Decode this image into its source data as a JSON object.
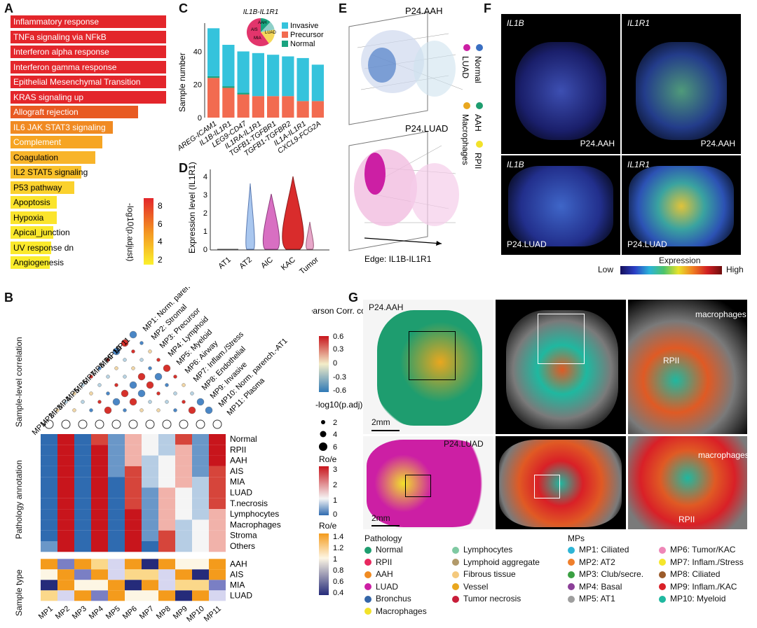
{
  "panels": {
    "a": "A",
    "b": "B",
    "c": "C",
    "d": "D",
    "e": "E",
    "f": "F",
    "g": "G"
  },
  "panelA": {
    "terms": [
      {
        "label": "Inflammatory response",
        "value": 8.8,
        "color": "#e3262b"
      },
      {
        "label": "TNFa signaling via NFkB",
        "value": 8.8,
        "color": "#e3262b"
      },
      {
        "label": "Interferon alpha response",
        "value": 8.8,
        "color": "#e3262b"
      },
      {
        "label": "Interferon gamma response",
        "value": 8.8,
        "color": "#e3262b"
      },
      {
        "label": "Epithelial Mesenchymal Transition",
        "value": 8.8,
        "color": "#e3262b"
      },
      {
        "label": "KRAS signaling up",
        "value": 8.8,
        "color": "#e3262b"
      },
      {
        "label": "Allograft rejection",
        "value": 7.2,
        "color": "#e85a22"
      },
      {
        "label": "IL6 JAK STAT3 signaling",
        "value": 5.8,
        "color": "#f08a22"
      },
      {
        "label": "Complement",
        "value": 5.2,
        "color": "#f6a523"
      },
      {
        "label": "Coagulation",
        "value": 4.8,
        "color": "#f8b42a"
      },
      {
        "label": "IL2 STAT5 signaling",
        "value": 4.0,
        "color": "#f9c12b"
      },
      {
        "label": "P53 pathway",
        "value": 3.6,
        "color": "#fbd12d"
      },
      {
        "label": "Apoptosis",
        "value": 2.6,
        "color": "#fbe42c"
      },
      {
        "label": "Hypoxia",
        "value": 2.6,
        "color": "#fbe42c"
      },
      {
        "label": "Apical_junction",
        "value": 2.4,
        "color": "#fbe92c"
      },
      {
        "label": "UV response dn",
        "value": 2.3,
        "color": "#fbe92c"
      },
      {
        "label": "Angiogenesis",
        "value": 2.2,
        "color": "#fbed2c"
      }
    ],
    "legend_title": "-log10(p.adjust)",
    "legend_ticks": [
      "8",
      "6",
      "4",
      "2"
    ]
  },
  "chart_data": {
    "type": "bar",
    "title": "IL1B-IL1R1",
    "ylabel": "Sample number",
    "ylim": [
      0,
      55
    ],
    "yticks": [
      "0",
      "20",
      "40"
    ],
    "categories": [
      "AREG-ICAM1",
      "IL1B-IL1R1",
      "LEG9-CD47",
      "IL1RA-IL1R1",
      "TGFB1-TGFBR1",
      "TGFB1-TGFBR2",
      "IL1A-IL1R1",
      "CXCL9-FCG2A"
    ],
    "series": [
      {
        "name": "Precursor",
        "color": "#f26b50",
        "values": [
          24,
          18,
          14,
          13,
          13,
          13,
          10,
          10
        ]
      },
      {
        "name": "Normal",
        "color": "#1aa37f",
        "values": [
          1,
          1,
          1,
          0,
          0,
          0,
          0,
          0
        ]
      },
      {
        "name": "Invasive",
        "color": "#35c3dc",
        "values": [
          29,
          25,
          25,
          26,
          25,
          24,
          26,
          22
        ]
      }
    ],
    "legend": [
      "Invasive",
      "Precursor",
      "Normal"
    ],
    "pie_labels": [
      "AAH",
      "AIS",
      "MIA",
      "LUAD"
    ]
  },
  "panelD": {
    "ylabel": "Expression level (IL1R1)",
    "yticks": [
      "0",
      "1",
      "2",
      "3",
      "4"
    ],
    "groups": [
      "AT1",
      "AT2",
      "AIC",
      "KAC",
      "Tumor"
    ]
  },
  "panelE": {
    "top": "P24.AAH",
    "bottom": "P24.LUAD",
    "edge": "Edge: IL1B-IL1R1",
    "legend": [
      "Normal",
      "AAH",
      "RPII",
      "LUAD",
      "Macrophages"
    ]
  },
  "panelF": {
    "labels": [
      "IL1B",
      "IL1R1",
      "IL1B",
      "IL1R1"
    ],
    "samples": [
      "P24.AAH",
      "P24.AAH",
      "P24.LUAD",
      "P24.LUAD"
    ],
    "scale_title": "Expression",
    "low": "Low",
    "high": "High"
  },
  "panelB": {
    "mps": [
      "MP1",
      "MP2",
      "MP3",
      "MP4",
      "MP5",
      "MP6",
      "MP7",
      "MP8",
      "MP9",
      "MP10",
      "MP11"
    ],
    "mp_names": [
      "MP1: Norm. parench.",
      "MP2: Stromal",
      "MP3: Precursor",
      "MP4: Lymphoid",
      "MP5: Myeloid",
      "MP6: Airway",
      "MP7: Inflam./Stress",
      "MP8: Endothelial",
      "MP9: Invasive",
      "MP10: Norm. parench.-AT1",
      "MP11: Plasma"
    ],
    "section1": "Sample-level correlation",
    "section2": "Pathology annotation",
    "section3": "Sample type",
    "pathology_rows": [
      "Normal",
      "RPII",
      "AAH",
      "AIS",
      "MIA",
      "LUAD",
      "T.necrosis",
      "Lymphocytes",
      "Macrophages",
      "Stroma",
      "Others"
    ],
    "sample_rows": [
      "AAH",
      "AIS",
      "MIA",
      "LUAD"
    ],
    "corr_title": "Pearson Corr. coeff.",
    "corr_ticks": [
      "0.6",
      "0.3",
      "0",
      "-0.3",
      "-0.6"
    ],
    "padj_title": "-log10(p.adj)",
    "padj_ticks": [
      "2",
      "4",
      "6"
    ],
    "roe_title": "Ro/e",
    "roe_ticks": [
      "3",
      "2",
      "1",
      "0"
    ],
    "roe2_ticks": [
      "1.4",
      "1.2",
      "1",
      "0.8",
      "0.6",
      "0.4"
    ]
  },
  "panelG": {
    "aah": "P24.AAH",
    "luad": "P24.LUAD",
    "scale": "2mm",
    "macro": "macrophages",
    "rpii": "RPII",
    "path_title": "Pathology",
    "path_col1": [
      {
        "n": "Normal",
        "c": "#1e9d6f"
      },
      {
        "n": "RPII",
        "c": "#e8285f"
      },
      {
        "n": "AAH",
        "c": "#f08b22"
      },
      {
        "n": "LUAD",
        "c": "#cc1fa4"
      },
      {
        "n": "Bronchus",
        "c": "#3465a8"
      },
      {
        "n": "Macrophages",
        "c": "#f2e22a"
      }
    ],
    "path_col2": [
      {
        "n": "Lymphocytes",
        "c": "#7fc9a2"
      },
      {
        "n": "Lymphoid aggregate",
        "c": "#b29a6a"
      },
      {
        "n": "Fibrous tissue",
        "c": "#f4c97d"
      },
      {
        "n": "Vessel",
        "c": "#e9a71f"
      },
      {
        "n": "Tumor necrosis",
        "c": "#c81d39"
      }
    ],
    "mp_title": "MPs",
    "mp_col1": [
      {
        "n": "MP1: Ciliated",
        "c": "#2eb5d6"
      },
      {
        "n": "MP2: AT2",
        "c": "#ef7f2c"
      },
      {
        "n": "MP3: Club/secre.",
        "c": "#3aa042"
      },
      {
        "n": "MP4: Basal",
        "c": "#8b3f98"
      },
      {
        "n": "MP5: AT1",
        "c": "#9e9e9e"
      }
    ],
    "mp_col2": [
      {
        "n": "MP6: Tumor/KAC",
        "c": "#ee87b7"
      },
      {
        "n": "MP7: Inflam./Stress",
        "c": "#f5e62c"
      },
      {
        "n": "MP8: Ciliated",
        "c": "#9b5b2a"
      },
      {
        "n": "MP9: Inflam./KAC",
        "c": "#d92027"
      },
      {
        "n": "MP10: Myeloid",
        "c": "#1fb8a0"
      }
    ]
  }
}
